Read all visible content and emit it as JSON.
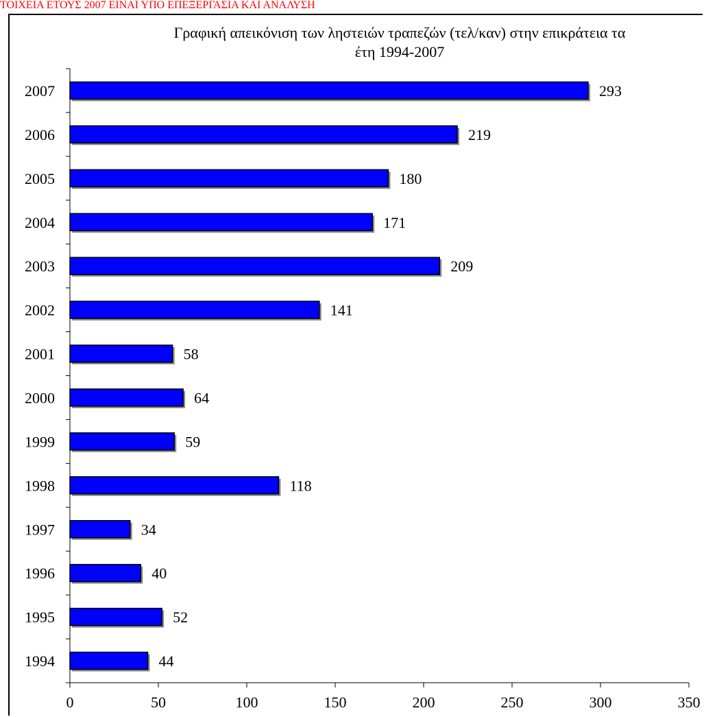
{
  "header": {
    "note": "ΤΟΙΧΕΙΑ ΕΤΟΥΣ 2007 ΕΙΝΑΙ ΥΠΟ ΕΠΕΞΕΡΓΑΣΙΑ ΚΑΙ ΑΝΑΛΥΣΗ"
  },
  "chart_data": {
    "type": "bar",
    "orientation": "horizontal",
    "title_line1": "Γραφική απεικόνιση των ληστειών τραπεζών (τελ/καν) στην επικράτεια τα",
    "title_line2": "έτη 1994-2007",
    "categories": [
      "1994",
      "1995",
      "1996",
      "1997",
      "1998",
      "1999",
      "2000",
      "2001",
      "2002",
      "2003",
      "2004",
      "2005",
      "2006",
      "2007"
    ],
    "values": [
      44,
      52,
      40,
      34,
      118,
      59,
      64,
      58,
      141,
      209,
      171,
      180,
      219,
      293
    ],
    "xlim": [
      0,
      350
    ],
    "xticks": [
      0,
      50,
      100,
      150,
      200,
      250,
      300,
      350
    ],
    "grid": false,
    "legend": "none",
    "colors": {
      "bar": "#0000ff",
      "bar_border": "#000000",
      "note": "#ff0000"
    }
  }
}
